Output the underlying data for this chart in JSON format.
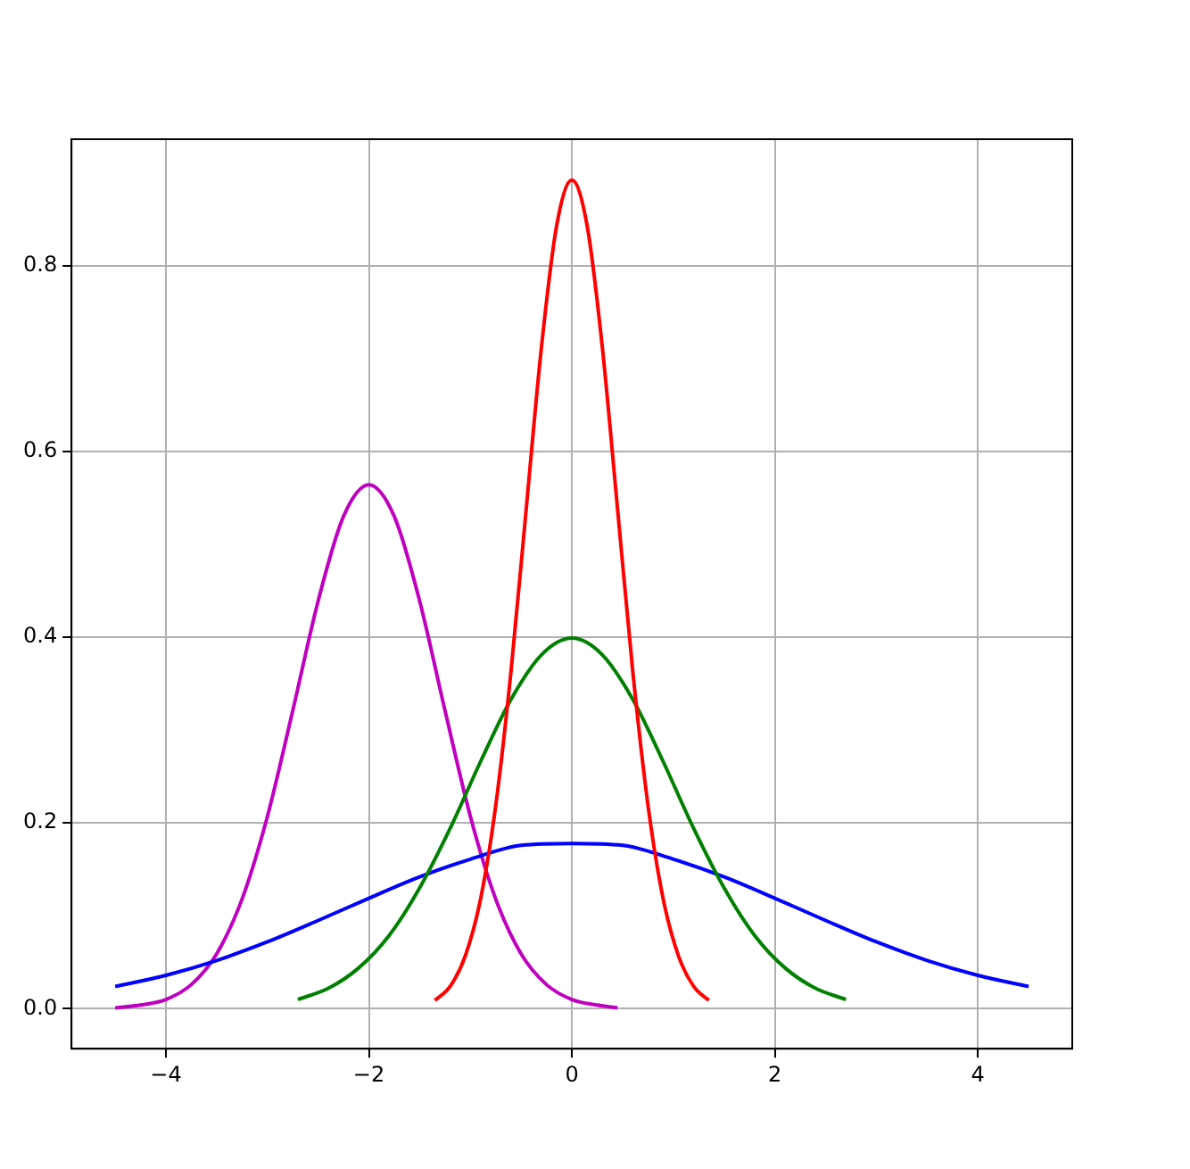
{
  "chart_data": {
    "type": "line",
    "xlim": [
      -4.93,
      4.93
    ],
    "ylim": [
      -0.043,
      0.936
    ],
    "xticks": [
      {
        "value": -4,
        "label": "−4"
      },
      {
        "value": -2,
        "label": "−2"
      },
      0,
      2,
      4
    ],
    "yticks": [
      {
        "value": 0,
        "label": "0.0"
      },
      0.2,
      0.4,
      0.6,
      0.8
    ],
    "grid": true,
    "legend": false,
    "marker": "none",
    "line_style": "solid",
    "series": [
      {
        "color": "#ff0000",
        "x": [
          -1.35,
          -1.2,
          -1.05,
          -0.9,
          -0.75,
          -0.6,
          -0.45,
          -0.3,
          -0.15,
          0,
          0.15,
          0.3,
          0.45,
          0.6,
          0.75,
          0.9,
          1.05,
          1.2,
          1.35
        ],
        "values": [
          0.009,
          0.024,
          0.057,
          0.118,
          0.219,
          0.363,
          0.538,
          0.712,
          0.843,
          0.892,
          0.843,
          0.712,
          0.538,
          0.363,
          0.219,
          0.118,
          0.057,
          0.024,
          0.009
        ]
      },
      {
        "color": "#008000",
        "x": [
          -2.7,
          -2.4,
          -2.1,
          -1.8,
          -1.5,
          -1.2,
          -0.9,
          -0.6,
          -0.3,
          0,
          0.3,
          0.6,
          0.9,
          1.2,
          1.5,
          1.8,
          2.1,
          2.4,
          2.7
        ],
        "values": [
          0.01,
          0.022,
          0.044,
          0.079,
          0.13,
          0.194,
          0.266,
          0.333,
          0.381,
          0.399,
          0.381,
          0.333,
          0.266,
          0.194,
          0.13,
          0.079,
          0.044,
          0.022,
          0.01
        ]
      },
      {
        "color": "#0000ff",
        "x": [
          -4.5,
          -4,
          -3.5,
          -3,
          -2.5,
          -2,
          -1.5,
          -1,
          -0.5,
          0,
          0.5,
          1,
          1.5,
          2,
          2.5,
          3,
          3.5,
          4,
          4.5
        ],
        "values": [
          0.024,
          0.036,
          0.052,
          0.072,
          0.095,
          0.119,
          0.142,
          0.161,
          0.176,
          0.178,
          0.176,
          0.161,
          0.142,
          0.119,
          0.095,
          0.072,
          0.052,
          0.036,
          0.024
        ]
      },
      {
        "color": "#bf00bf",
        "x": [
          -4.5,
          -4.25,
          -4,
          -3.75,
          -3.5,
          -3.25,
          -3,
          -2.75,
          -2.5,
          -2.25,
          -2,
          -1.75,
          -1.5,
          -1.25,
          -1,
          -0.75,
          -0.5,
          -0.25,
          0,
          0.25,
          0.45
        ],
        "values": [
          0.001,
          0.004,
          0.01,
          0.026,
          0.059,
          0.118,
          0.207,
          0.321,
          0.439,
          0.53,
          0.564,
          0.53,
          0.439,
          0.321,
          0.207,
          0.118,
          0.059,
          0.026,
          0.01,
          0.004,
          0.001
        ]
      }
    ]
  }
}
